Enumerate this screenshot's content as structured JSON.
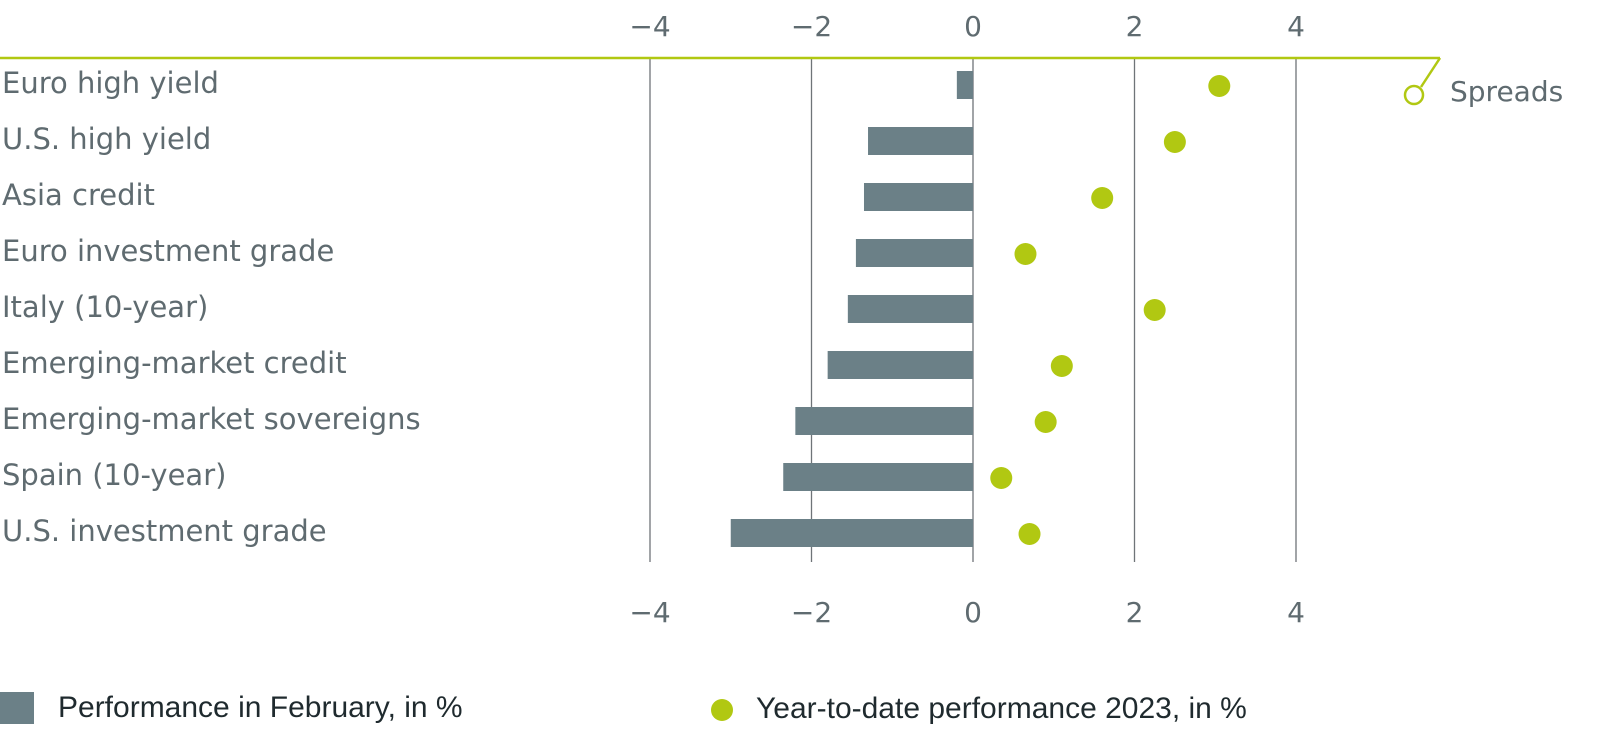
{
  "colors": {
    "bar": "#6b8087",
    "dot": "#b1c812",
    "axis_line": "#b1c812",
    "grid": "#6f7478",
    "text": "#5f6b70",
    "legend_text": "#1f2a2e"
  },
  "chart_data": {
    "type": "bar",
    "orientation": "horizontal",
    "categories": [
      "Euro high yield",
      "U.S. high yield",
      "Asia credit",
      "Euro investment grade",
      "Italy (10-year)",
      "Emerging-market credit",
      "Emerging-market sovereigns",
      "Spain (10-year)",
      "U.S. investment grade"
    ],
    "series": [
      {
        "name": "Performance in February, in %",
        "type": "bar",
        "values": [
          -0.2,
          -1.3,
          -1.35,
          -1.45,
          -1.55,
          -1.8,
          -2.2,
          -2.35,
          -3.0
        ]
      },
      {
        "name": "Year-to-date performance 2023, in %",
        "type": "scatter",
        "values": [
          3.05,
          2.5,
          1.6,
          0.65,
          2.25,
          1.1,
          0.9,
          0.35,
          0.7
        ]
      }
    ],
    "xlim": [
      -4,
      4
    ],
    "xticks": [
      "−4",
      "−2",
      "0",
      "2",
      "4"
    ],
    "xtick_values": [
      -4,
      -2,
      0,
      2,
      4
    ],
    "annotation": "Spreads",
    "grid": true,
    "legend_position": "bottom"
  }
}
